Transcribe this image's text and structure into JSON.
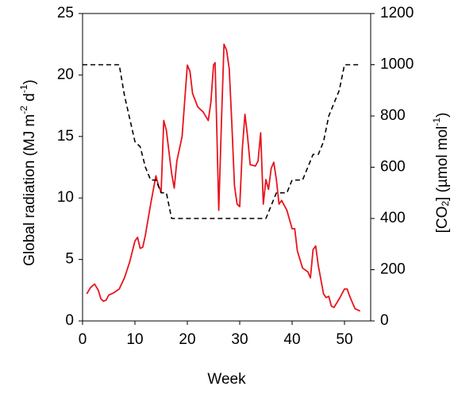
{
  "chart_data": {
    "type": "line",
    "xlabel": "Week",
    "ylabel": [
      "Global radiation (MJ m",
      "-2",
      " d",
      "-1",
      ")"
    ],
    "y2label": [
      "[CO",
      "2",
      "] (µmol mol",
      "-1",
      ")"
    ],
    "xlim": [
      0,
      55
    ],
    "xticks": [
      0,
      10,
      20,
      30,
      40,
      50
    ],
    "ylim": [
      0,
      25
    ],
    "yticks": [
      0,
      5,
      10,
      15,
      20,
      25
    ],
    "y2lim": [
      0,
      1200
    ],
    "y2ticks": [
      0,
      200,
      400,
      600,
      800,
      1000,
      1200
    ],
    "series": [
      {
        "color": "#e8141c",
        "linestyle": "solid",
        "x": [
          0.8,
          1.5,
          2.3,
          3,
          3.5,
          4,
          4.5,
          5,
          6,
          7,
          8,
          9,
          10,
          10.5,
          11,
          11.5,
          12,
          13,
          14,
          14.5,
          15,
          15.5,
          16,
          17,
          17.5,
          18,
          19,
          20,
          20.5,
          21,
          22,
          23,
          24,
          24.5,
          25,
          25.3,
          25.6,
          26,
          26.5,
          27,
          27.5,
          28,
          28.5,
          29,
          29.5,
          30,
          30.5,
          31,
          31.5,
          32,
          33,
          33.5,
          34,
          34.5,
          35,
          35.5,
          36,
          36.5,
          37,
          37.5,
          38,
          39,
          40,
          40.5,
          41,
          42,
          43,
          43.5,
          44,
          44.5,
          45,
          46,
          46.5,
          47,
          47.5,
          48,
          49,
          50,
          50.5,
          51,
          52,
          53
        ],
        "values": [
          2.2,
          2.7,
          3.0,
          2.5,
          1.8,
          1.6,
          1.7,
          2.1,
          2.3,
          2.6,
          3.5,
          4.8,
          6.5,
          6.8,
          5.9,
          6.0,
          7.0,
          9.5,
          11.8,
          11.0,
          10.5,
          16.3,
          15.5,
          12.0,
          10.8,
          13.0,
          15.0,
          20.8,
          20.3,
          18.5,
          17.4,
          17.0,
          16.3,
          17.8,
          20.8,
          21.0,
          16.0,
          9.0,
          16.0,
          22.5,
          22.0,
          20.5,
          16.0,
          11.0,
          9.5,
          9.3,
          14.0,
          16.8,
          15.0,
          12.7,
          12.6,
          13.0,
          15.3,
          9.5,
          11.5,
          10.7,
          12.4,
          12.9,
          11.5,
          9.5,
          9.8,
          9.0,
          7.5,
          7.5,
          5.7,
          4.3,
          4.0,
          3.5,
          5.8,
          6.1,
          4.5,
          2.2,
          1.9,
          2.0,
          1.2,
          1.1,
          1.8,
          2.6,
          2.6,
          2.0,
          1.0,
          0.8
        ]
      },
      {
        "color": "#000000",
        "linestyle": "dashed",
        "axis": "y2",
        "x": [
          0,
          7,
          8,
          9,
          10,
          11,
          12,
          13,
          14,
          15,
          16,
          17,
          35,
          36,
          37,
          39,
          40,
          42,
          43,
          44,
          45,
          46,
          47,
          48,
          49,
          50,
          53
        ],
        "values": [
          1000,
          1000,
          880,
          790,
          700,
          680,
          600,
          550,
          550,
          500,
          500,
          400,
          400,
          450,
          500,
          500,
          550,
          550,
          600,
          650,
          650,
          700,
          800,
          850,
          900,
          1000,
          1000
        ]
      }
    ]
  }
}
